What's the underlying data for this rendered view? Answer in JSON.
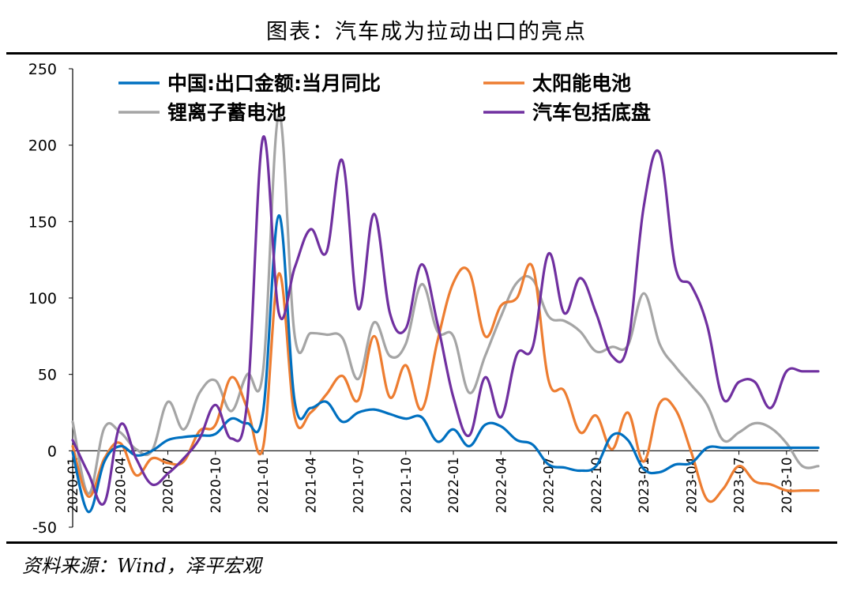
{
  "title": "图表：汽车成为拉动出口的亮点",
  "source": "资料来源：Wind，泽平宏观",
  "chart_data": {
    "type": "line",
    "title": "图表：汽车成为拉动出口的亮点",
    "xlabel": "",
    "ylabel": "",
    "ylim": [
      -50,
      250
    ],
    "yticks": [
      -50,
      0,
      50,
      100,
      150,
      200,
      250
    ],
    "grid": false,
    "legend_position": "top",
    "x": [
      "2020-01",
      "2020-02",
      "2020-03",
      "2020-04",
      "2020-05",
      "2020-06",
      "2020-07",
      "2020-08",
      "2020-09",
      "2020-10",
      "2020-11",
      "2020-12",
      "2021-01",
      "2021-02",
      "2021-03",
      "2021-04",
      "2021-05",
      "2021-06",
      "2021-07",
      "2021-08",
      "2021-09",
      "2021-10",
      "2021-11",
      "2021-12",
      "2022-01",
      "2022-02",
      "2022-03",
      "2022-04",
      "2022-05",
      "2022-06",
      "2022-07",
      "2022-08",
      "2022-09",
      "2022-10",
      "2022-11",
      "2022-12",
      "2023-01",
      "2023-02",
      "2023-03",
      "2023-04",
      "2023-05",
      "2023-06",
      "2023-07",
      "2023-08",
      "2023-09",
      "2023-10",
      "2023-11",
      "2023-12"
    ],
    "x_tick_labels": [
      "2020-01",
      "2020-04",
      "2020-07",
      "2020-10",
      "2021-01",
      "2021-04",
      "2021-07",
      "2021-10",
      "2022-01",
      "2022-04",
      "2022-07",
      "2022-10",
      "2023-01",
      "2023-04",
      "2023-07",
      "2023-10"
    ],
    "series": [
      {
        "name": "中国:出口金额:当月同比",
        "color": "#0070C0",
        "values": [
          -1,
          -40,
          -7,
          3,
          -3,
          0,
          7,
          9,
          10,
          11,
          21,
          18,
          25,
          154,
          32,
          28,
          32,
          19,
          25,
          27,
          24,
          21,
          22,
          6,
          14,
          3,
          17,
          16,
          7,
          4,
          -9,
          -11,
          -13,
          -10,
          10,
          7,
          -12,
          -14,
          -9,
          -8,
          2,
          2,
          2,
          2,
          2,
          2,
          2,
          2
        ]
      },
      {
        "name": "太阳能电池",
        "color": "#ED7D31",
        "values": [
          3,
          -30,
          -5,
          5,
          -16,
          -5,
          -8,
          -7,
          13,
          17,
          48,
          28,
          2,
          116,
          22,
          25,
          37,
          49,
          33,
          75,
          35,
          56,
          27,
          72,
          110,
          117,
          75,
          95,
          100,
          120,
          46,
          39,
          12,
          23,
          1,
          25,
          -7,
          31,
          27,
          -1,
          -32,
          -25,
          -10,
          -20,
          -22,
          -26,
          -26,
          -26
        ]
      },
      {
        "name": "锂离子蓄电池",
        "color": "#A5A5A5",
        "values": [
          19,
          -28,
          15,
          12,
          1,
          0,
          32,
          14,
          38,
          46,
          26,
          50,
          52,
          220,
          75,
          77,
          76,
          74,
          47,
          84,
          62,
          70,
          109,
          78,
          75,
          38,
          62,
          88,
          110,
          112,
          88,
          85,
          78,
          65,
          68,
          69,
          103,
          70,
          55,
          43,
          30,
          7,
          12,
          18,
          15,
          5,
          -10,
          -10
        ]
      },
      {
        "name": "汽车包括底盘",
        "color": "#7030A0",
        "values": [
          7,
          -15,
          -34,
          17,
          -5,
          -22,
          -15,
          -5,
          8,
          30,
          8,
          32,
          205,
          90,
          120,
          145,
          130,
          190,
          93,
          155,
          90,
          80,
          122,
          83,
          35,
          10,
          48,
          22,
          63,
          68,
          129,
          90,
          113,
          90,
          62,
          70,
          160,
          195,
          120,
          108,
          82,
          34,
          45,
          45,
          28,
          52,
          52,
          52
        ]
      }
    ]
  }
}
